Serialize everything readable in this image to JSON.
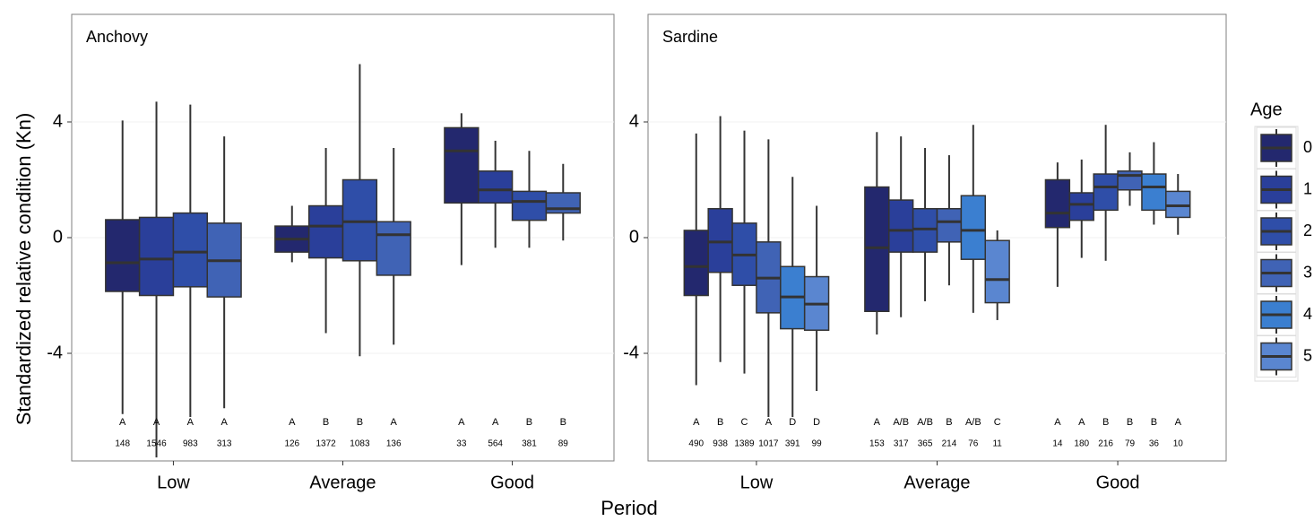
{
  "ylabel": "Standardized relative condition (Kn)",
  "xlabel": "Period",
  "legend_title": "Age",
  "chart_data": [
    {
      "type": "box",
      "title": "Anchovy",
      "categories": [
        "Low",
        "Average",
        "Good"
      ],
      "ylim": [
        -7.72,
        7.72
      ],
      "yticks": [
        -4,
        0,
        4
      ],
      "grid": true,
      "series": [
        {
          "name": "0",
          "color": "#23286e",
          "values": [
            {
              "min": -6.1,
              "q1": -1.86,
              "median": -0.87,
              "q3": 0.62,
              "max": 4.05
            },
            {
              "min": -0.85,
              "q1": -0.5,
              "median": -0.05,
              "q3": 0.4,
              "max": 1.1
            },
            {
              "min": -0.95,
              "q1": 1.2,
              "median": 3.0,
              "q3": 3.8,
              "max": 4.3
            }
          ],
          "letters": [
            "A",
            "A",
            "A"
          ],
          "n": [
            148,
            126,
            33
          ]
        },
        {
          "name": "1",
          "color": "#2a3f9a",
          "values": [
            {
              "min": -7.6,
              "q1": -2.0,
              "median": -0.74,
              "q3": 0.7,
              "max": 4.7
            },
            {
              "min": -3.3,
              "q1": -0.7,
              "median": 0.4,
              "q3": 1.1,
              "max": 3.1
            },
            {
              "min": -0.35,
              "q1": 1.2,
              "median": 1.65,
              "q3": 2.3,
              "max": 3.35
            }
          ],
          "letters": [
            "A",
            "B",
            "A"
          ],
          "n": [
            1546,
            1372,
            564
          ]
        },
        {
          "name": "2",
          "color": "#2f4ea8",
          "values": [
            {
              "min": -6.2,
              "q1": -1.7,
              "median": -0.5,
              "q3": 0.85,
              "max": 4.6
            },
            {
              "min": -4.1,
              "q1": -0.8,
              "median": 0.55,
              "q3": 2.0,
              "max": 6.0
            },
            {
              "min": -0.35,
              "q1": 0.6,
              "median": 1.25,
              "q3": 1.6,
              "max": 3.0
            }
          ],
          "letters": [
            "A",
            "B",
            "B"
          ],
          "n": [
            983,
            1083,
            381
          ]
        },
        {
          "name": "3",
          "color": "#4063b5",
          "values": [
            {
              "min": -5.9,
              "q1": -2.05,
              "median": -0.8,
              "q3": 0.5,
              "max": 3.5
            },
            {
              "min": -3.7,
              "q1": -1.3,
              "median": 0.1,
              "q3": 0.55,
              "max": 3.1
            },
            {
              "min": -0.1,
              "q1": 0.85,
              "median": 1.0,
              "q3": 1.55,
              "max": 2.55
            }
          ],
          "letters": [
            "A",
            "A",
            "B"
          ],
          "n": [
            313,
            136,
            89
          ]
        }
      ]
    },
    {
      "type": "box",
      "title": "Sardine",
      "categories": [
        "Low",
        "Average",
        "Good"
      ],
      "ylim": [
        -7.72,
        7.72
      ],
      "yticks": [
        -4,
        0,
        4
      ],
      "grid": true,
      "series": [
        {
          "name": "0",
          "color": "#23286e",
          "values": [
            {
              "min": -5.1,
              "q1": -2.0,
              "median": -1.0,
              "q3": 0.25,
              "max": 3.6
            },
            {
              "min": -3.35,
              "q1": -2.55,
              "median": -0.35,
              "q3": 1.75,
              "max": 3.65
            },
            {
              "min": -1.7,
              "q1": 0.35,
              "median": 0.85,
              "q3": 2.0,
              "max": 2.6
            }
          ],
          "letters": [
            "A",
            "A",
            "A"
          ],
          "n": [
            490,
            153,
            14
          ]
        },
        {
          "name": "1",
          "color": "#2a3f9a",
          "values": [
            {
              "min": -4.3,
              "q1": -1.2,
              "median": -0.15,
              "q3": 1.0,
              "max": 4.2
            },
            {
              "min": -2.75,
              "q1": -0.5,
              "median": 0.25,
              "q3": 1.3,
              "max": 3.5
            },
            {
              "min": -0.7,
              "q1": 0.6,
              "median": 1.15,
              "q3": 1.55,
              "max": 2.7
            }
          ],
          "letters": [
            "B",
            "A/B",
            "A"
          ],
          "n": [
            938,
            317,
            180
          ]
        },
        {
          "name": "2",
          "color": "#2f4ea8",
          "values": [
            {
              "min": -4.7,
              "q1": -1.65,
              "median": -0.6,
              "q3": 0.5,
              "max": 3.7
            },
            {
              "min": -2.2,
              "q1": -0.5,
              "median": 0.3,
              "q3": 1.0,
              "max": 3.1
            },
            {
              "min": -0.8,
              "q1": 0.95,
              "median": 1.75,
              "q3": 2.2,
              "max": 3.9
            }
          ],
          "letters": [
            "C",
            "A/B",
            "B"
          ],
          "n": [
            1389,
            365,
            216
          ]
        },
        {
          "name": "3",
          "color": "#4063b5",
          "values": [
            {
              "min": -6.2,
              "q1": -2.6,
              "median": -1.4,
              "q3": -0.15,
              "max": 3.4
            },
            {
              "min": -1.65,
              "q1": -0.15,
              "median": 0.55,
              "q3": 1.0,
              "max": 2.85
            },
            {
              "min": 1.1,
              "q1": 1.65,
              "median": 2.15,
              "q3": 2.3,
              "max": 2.95
            }
          ],
          "letters": [
            "A",
            "B",
            "B"
          ],
          "n": [
            1017,
            214,
            79
          ]
        },
        {
          "name": "4",
          "color": "#3b7fd0",
          "values": [
            {
              "min": -6.2,
              "q1": -3.15,
              "median": -2.05,
              "q3": -1.0,
              "max": 2.1
            },
            {
              "min": -2.6,
              "q1": -0.75,
              "median": 0.25,
              "q3": 1.45,
              "max": 3.9
            },
            {
              "min": 0.45,
              "q1": 0.95,
              "median": 1.75,
              "q3": 2.2,
              "max": 3.3
            }
          ],
          "letters": [
            "D",
            "A/B",
            "B"
          ],
          "n": [
            391,
            76,
            36
          ]
        },
        {
          "name": "5",
          "color": "#5a86d0",
          "values": [
            {
              "min": -5.3,
              "q1": -3.2,
              "median": -2.3,
              "q3": -1.35,
              "max": 1.1
            },
            {
              "min": -2.85,
              "q1": -2.25,
              "median": -1.45,
              "q3": -0.1,
              "max": 0.25
            },
            {
              "min": 0.1,
              "q1": 0.7,
              "median": 1.1,
              "q3": 1.6,
              "max": 2.2
            }
          ],
          "letters": [
            "D",
            "C",
            "A"
          ],
          "n": [
            99,
            11,
            10
          ]
        }
      ]
    }
  ]
}
